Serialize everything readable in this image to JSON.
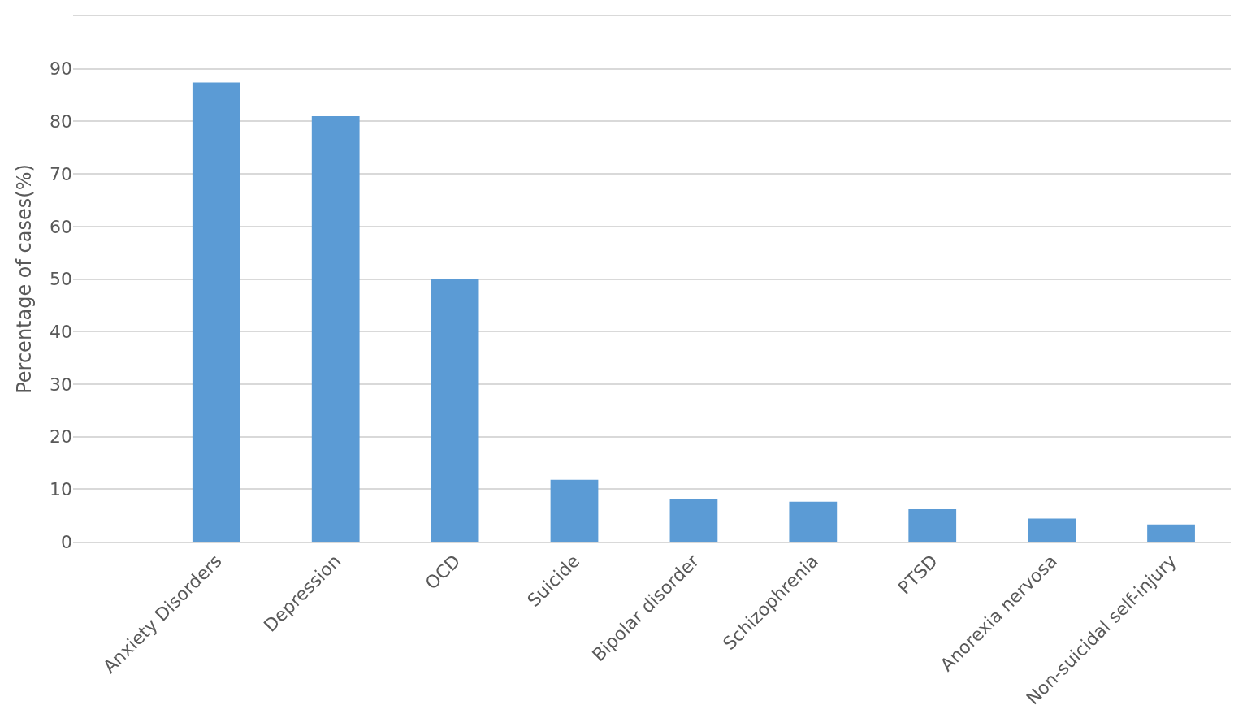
{
  "chart_data": {
    "type": "bar",
    "ylabel": "Percentage of cases(%)",
    "categories": [
      "Anxiety Disorders",
      "Depression",
      "OCD",
      "Suicide",
      "Bipolar disorder",
      "Schizophrenia",
      "PTSD",
      "Anorexia nervosa",
      "Non-suicidal self-injury"
    ],
    "values": [
      87.4,
      81,
      50,
      11.8,
      8.2,
      7.6,
      6.2,
      4.4,
      3.3
    ],
    "color": "#5b9bd5",
    "ylim": [
      0,
      100
    ],
    "yticks": [
      0,
      10,
      20,
      30,
      40,
      50,
      60,
      70,
      80,
      90
    ],
    "grid": "y"
  }
}
